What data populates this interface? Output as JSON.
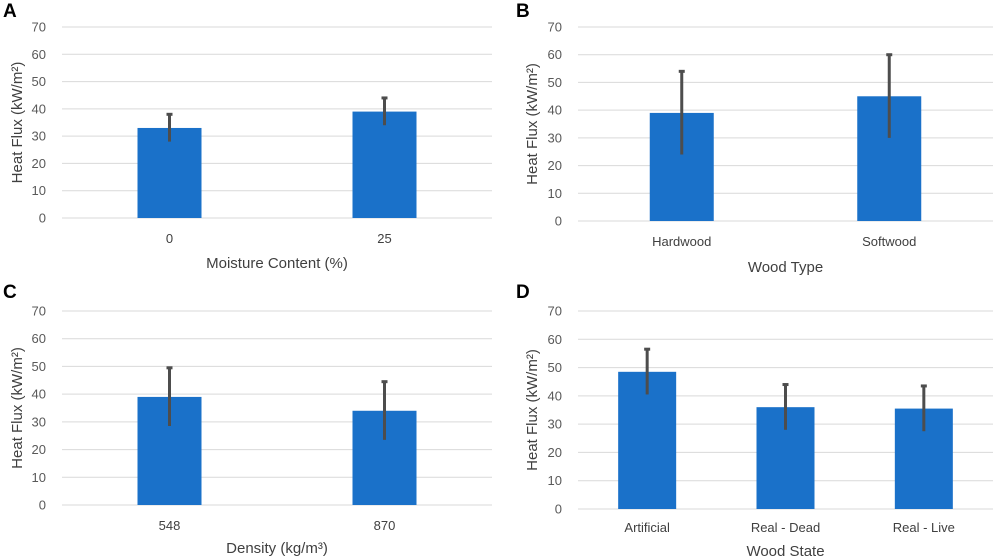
{
  "chart_data": [
    {
      "panel": "A",
      "type": "bar",
      "categories": [
        "0",
        "25"
      ],
      "values": [
        33,
        39
      ],
      "errors": [
        5,
        5
      ],
      "xlabel": "Moisture Content (%)",
      "ylabel": "Heat Flux (kW/m²)",
      "ylim": [
        0,
        70
      ],
      "yticks": [
        0,
        10,
        20,
        30,
        40,
        50,
        60,
        70
      ],
      "grid": true
    },
    {
      "panel": "B",
      "type": "bar",
      "categories": [
        "Hardwood",
        "Softwood"
      ],
      "values": [
        39,
        45
      ],
      "errors": [
        15,
        15
      ],
      "xlabel": "Wood Type",
      "ylabel": "Heat Flux (kW/m²)",
      "ylim": [
        0,
        70
      ],
      "yticks": [
        0,
        10,
        20,
        30,
        40,
        50,
        60,
        70
      ],
      "grid": true
    },
    {
      "panel": "C",
      "type": "bar",
      "categories": [
        "548",
        "870"
      ],
      "values": [
        39,
        34
      ],
      "errors": [
        10.5,
        10.5
      ],
      "xlabel": "Density (kg/m³)",
      "ylabel": "Heat Flux (kW/m²)",
      "ylim": [
        0,
        70
      ],
      "yticks": [
        0,
        10,
        20,
        30,
        40,
        50,
        60,
        70
      ],
      "grid": true
    },
    {
      "panel": "D",
      "type": "bar",
      "categories": [
        "Artificial",
        "Real - Dead",
        "Real - Live"
      ],
      "values": [
        48.5,
        36,
        35.5
      ],
      "errors": [
        8,
        8,
        8
      ],
      "xlabel": "Wood State",
      "ylabel": "Heat Flux (kW/m²)",
      "ylim": [
        0,
        70
      ],
      "yticks": [
        0,
        10,
        20,
        30,
        40,
        50,
        60,
        70
      ],
      "grid": true
    }
  ],
  "colors": {
    "bar": "#1a71c9",
    "error_bar": "#4d4d4d",
    "grid": "#d9d9d9"
  }
}
